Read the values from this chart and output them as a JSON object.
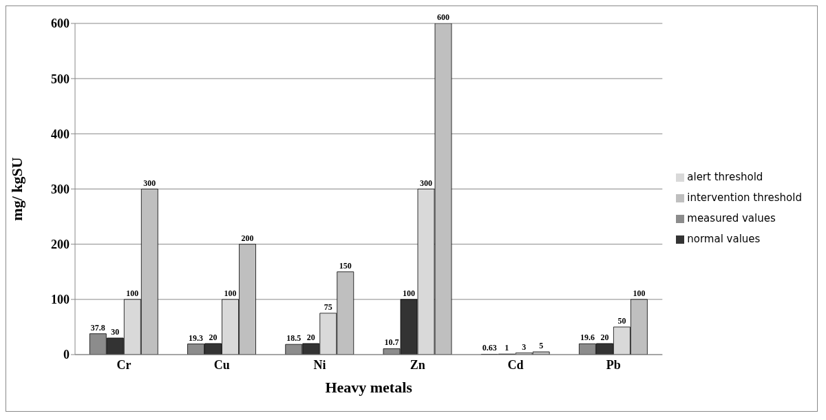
{
  "chart_data": {
    "type": "bar",
    "xlabel": "Heavy metals",
    "ylabel": "mg/ kgSU",
    "categories": [
      "Cr",
      "Cu",
      "Ni",
      "Zn",
      "Cd",
      "Pb"
    ],
    "series": [
      {
        "name": "measured values",
        "color": "#8c8c8c",
        "values": [
          37.8,
          19.3,
          18.5,
          10.7,
          0.63,
          19.6
        ]
      },
      {
        "name": "normal values",
        "color": "#333333",
        "values": [
          30,
          20,
          20,
          100,
          1,
          20
        ]
      },
      {
        "name": "alert threshold",
        "color": "#d9d9d9",
        "values": [
          100,
          100,
          75,
          300,
          3,
          50
        ]
      },
      {
        "name": "intervention threshold",
        "color": "#bfbfbf",
        "values": [
          300,
          200,
          150,
          600,
          5,
          100
        ]
      }
    ],
    "ylim": [
      0,
      600
    ],
    "yticks": [
      0,
      100,
      200,
      300,
      400,
      500,
      600
    ],
    "grid": "y",
    "legend": "right",
    "data_labels": true
  }
}
